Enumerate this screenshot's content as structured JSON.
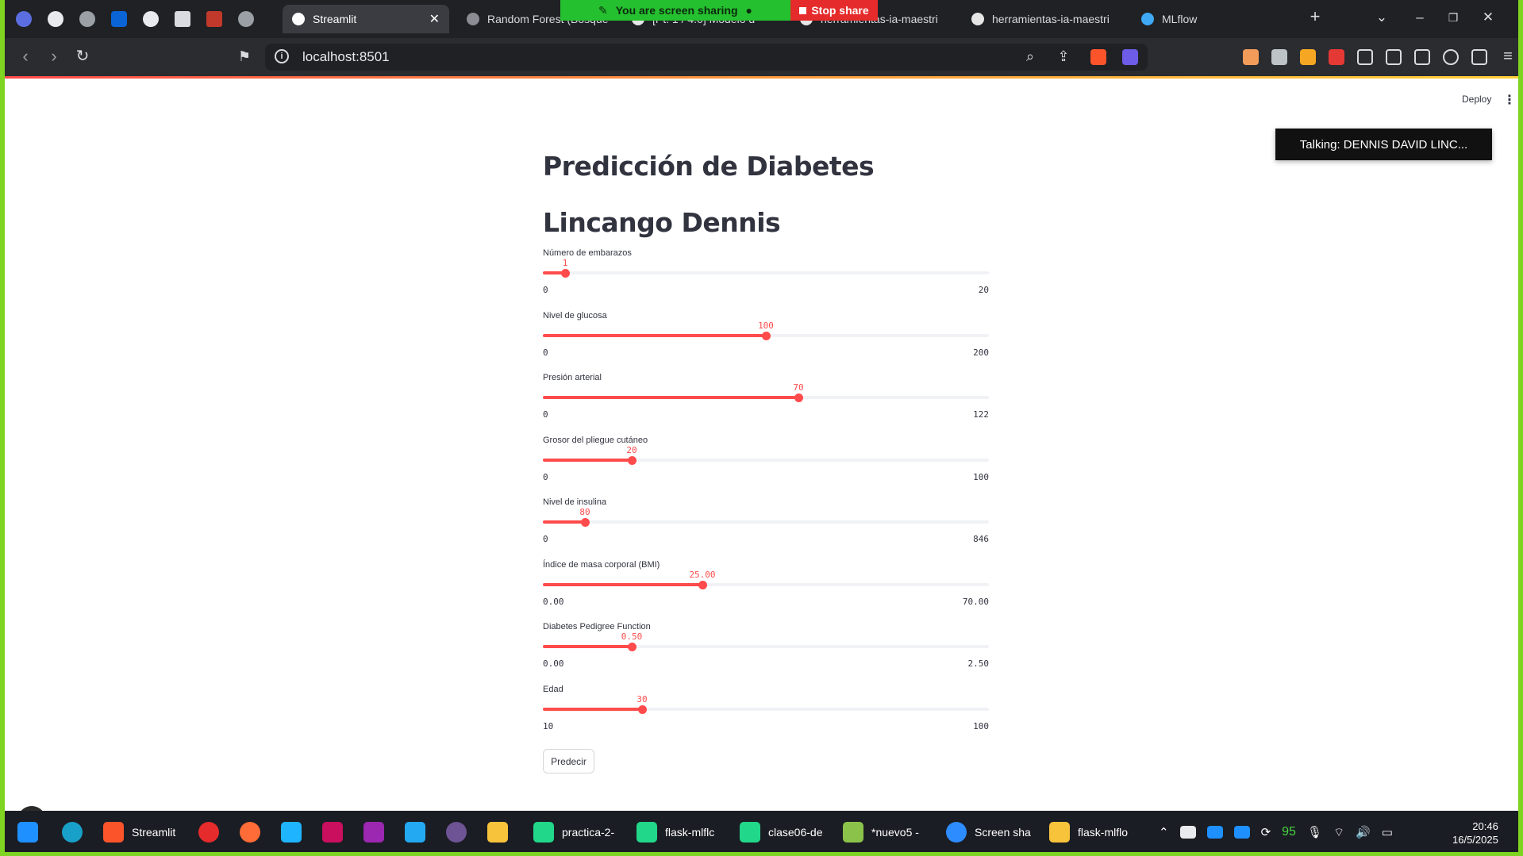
{
  "browser": {
    "tabs": [
      {
        "label": "Random Forest (Bosque",
        "color": "#8a8d93"
      },
      {
        "label": "Streamlit",
        "active": true,
        "color": "#ffffff"
      },
      {
        "label": "[Pt. 1 / 4.0] Modelo d",
        "color": "#e6e6e6"
      },
      {
        "label": "herramientas-ia-maestri",
        "color": "#e6e6e6"
      },
      {
        "label": "herramientas-ia-maestri",
        "color": "#e6e6e6"
      },
      {
        "label": "MLflow",
        "color": "#3fa9f5"
      }
    ],
    "url": "localhost:8501",
    "share_banner": "You are screen sharing",
    "stop_share": "Stop share"
  },
  "app": {
    "deploy": "Deploy",
    "talking": "Talking: DENNIS DAVID LINC...",
    "title": "Predicción de Diabetes",
    "subtitle": "Lincango Dennis",
    "predict_button": "Predecir",
    "accent_color": "#ff4b4b"
  },
  "sliders": [
    {
      "label": "Número de embarazos",
      "value": "1",
      "min": "0",
      "max": "20",
      "fraction": 0.05
    },
    {
      "label": "Nivel de glucosa",
      "value": "100",
      "min": "0",
      "max": "200",
      "fraction": 0.5
    },
    {
      "label": "Presión arterial",
      "value": "70",
      "min": "0",
      "max": "122",
      "fraction": 0.5738
    },
    {
      "label": "Grosor del pliegue cutáneo",
      "value": "20",
      "min": "0",
      "max": "100",
      "fraction": 0.2
    },
    {
      "label": "Nivel de insulina",
      "value": "80",
      "min": "0",
      "max": "846",
      "fraction": 0.0946
    },
    {
      "label": "Índice de masa corporal (BMI)",
      "value": "25.00",
      "min": "0.00",
      "max": "70.00",
      "fraction": 0.3571
    },
    {
      "label": "Diabetes Pedigree Function",
      "value": "0.50",
      "min": "0.00",
      "max": "2.50",
      "fraction": 0.2
    },
    {
      "label": "Edad",
      "value": "30",
      "min": "10",
      "max": "100",
      "fraction": 0.2222
    }
  ],
  "taskbar": {
    "items": [
      {
        "label": "Streamlit",
        "color": "#fb542b"
      },
      {
        "label": "practica-2-",
        "color": "#21d789"
      },
      {
        "label": "flask-mlflc",
        "color": "#21d789"
      },
      {
        "label": "clase06-de",
        "color": "#21d789"
      },
      {
        "label": "*nuevo5 -",
        "color": "#8bc34a"
      },
      {
        "label": "Screen sha",
        "color": "#2d8cff"
      },
      {
        "label": "flask-mlflo",
        "color": "#f6c33b"
      }
    ],
    "tray_number": "95",
    "time": "20:46",
    "date": "16/5/2025"
  }
}
